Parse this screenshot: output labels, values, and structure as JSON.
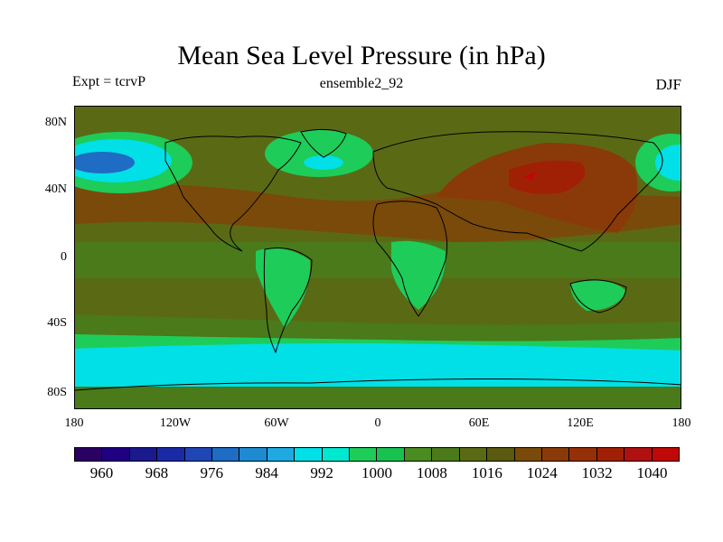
{
  "title": "Mean Sea Level Pressure (in hPa)",
  "left_label": "Expt = tcrvP",
  "center_label": "ensemble2_92",
  "right_label": "DJF",
  "lat_labels": [
    "80N",
    "40N",
    "0",
    "40S",
    "80S"
  ],
  "lon_labels": [
    "180",
    "120W",
    "60W",
    "0",
    "60E",
    "120E",
    "180"
  ],
  "colorbar": {
    "colors": [
      "#2a0063",
      "#1f0080",
      "#1a1a8c",
      "#1a2aa6",
      "#1f46b4",
      "#1e6cc4",
      "#1e8ad2",
      "#1eaae0",
      "#00e0e6",
      "#00e8d0",
      "#1ecc5a",
      "#18c250",
      "#4a8c22",
      "#4a7a1a",
      "#5a6a14",
      "#5a5a10",
      "#7a4a0a",
      "#8a3a08",
      "#943008",
      "#a02006",
      "#b01010",
      "#c00808"
    ],
    "labels": [
      "960",
      "968",
      "976",
      "984",
      "992",
      "1000",
      "1008",
      "1016",
      "1024",
      "1032",
      "1040"
    ]
  },
  "regions": {
    "ocean_mid": "#5a6a14",
    "ocean_subtrop": "#4a7a1a",
    "high": "#8a3a08",
    "higher": "#a02006",
    "peak": "#c00808",
    "low_green": "#1ecc5a",
    "low_cyan": "#00e0e6",
    "lowest": "#1e6cc4"
  }
}
